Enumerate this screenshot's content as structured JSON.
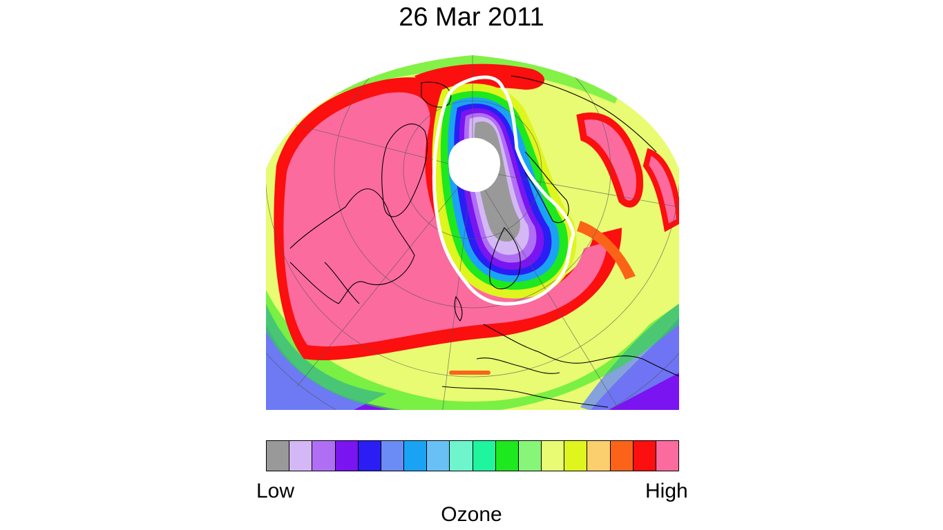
{
  "title": "26 Mar 2011",
  "map": {
    "projection": "north-polar-orthographic",
    "coastlines": true,
    "graticule": true,
    "polar_no_data": true,
    "vortex_contour_color": "#ffffff"
  },
  "colorbar": {
    "label": "Ozone",
    "low_label": "Low",
    "high_label": "High",
    "colors": [
      "#999999",
      "#d4b8f5",
      "#b06ef5",
      "#7a14f0",
      "#2a1ef5",
      "#6b8cf5",
      "#1aa3f5",
      "#69c0f5",
      "#6ef5cc",
      "#1ef59d",
      "#1ee81e",
      "#87f578",
      "#e8fb72",
      "#dff51e",
      "#fbcf6e",
      "#fb6418",
      "#fb0f0f",
      "#fb6b9e"
    ]
  }
}
